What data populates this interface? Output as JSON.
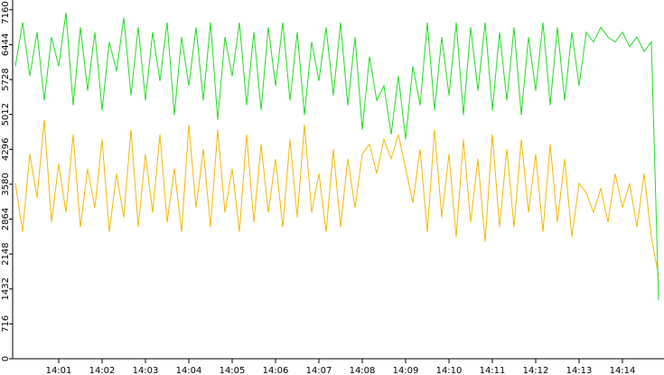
{
  "chart_data": {
    "type": "line",
    "categories": [
      null,
      null,
      null,
      null,
      null,
      null,
      "14:01",
      null,
      null,
      null,
      null,
      null,
      "14:02",
      null,
      null,
      null,
      null,
      null,
      "14:03",
      null,
      null,
      null,
      null,
      null,
      "14:04",
      null,
      null,
      null,
      null,
      null,
      "14:05",
      null,
      null,
      null,
      null,
      null,
      "14:06",
      null,
      null,
      null,
      null,
      null,
      "14:07",
      null,
      null,
      null,
      null,
      null,
      "14:08",
      null,
      null,
      null,
      null,
      null,
      "14:09",
      null,
      null,
      null,
      null,
      null,
      "14:10",
      null,
      null,
      null,
      null,
      null,
      "14:11",
      null,
      null,
      null,
      null,
      null,
      "14:12",
      null,
      null,
      null,
      null,
      null,
      "14:13",
      null,
      null,
      null,
      null,
      null,
      "14:14",
      null,
      null,
      null,
      null,
      null
    ],
    "series": [
      {
        "color": "#22dd22",
        "values": [
          6000,
          6900,
          5800,
          6700,
          5300,
          6600,
          6000,
          7100,
          5200,
          6800,
          5500,
          6700,
          5100,
          6500,
          5900,
          7000,
          5400,
          6800,
          5300,
          6700,
          5700,
          6900,
          5000,
          6600,
          5600,
          6800,
          5300,
          6900,
          4900,
          6600,
          5800,
          6900,
          5200,
          6700,
          5100,
          6800,
          5600,
          6900,
          5300,
          6700,
          5000,
          6500,
          5700,
          6800,
          5400,
          6900,
          5200,
          6600,
          4700,
          6200,
          5300,
          5600,
          4600,
          5800,
          4500,
          6000,
          5200,
          6900,
          5100,
          6600,
          5400,
          6900,
          5000,
          6800,
          5500,
          6900,
          5100,
          6700,
          5300,
          6800,
          5000,
          6600,
          5500,
          6900,
          5200,
          6800,
          5300,
          6700,
          5600,
          6700,
          6500,
          6800,
          6600,
          6500,
          6700,
          6400,
          6600,
          6300,
          6500,
          1200
        ]
      },
      {
        "color": "#f5b800",
        "values": [
          3600,
          2600,
          4200,
          3300,
          4900,
          2800,
          4000,
          3000,
          4600,
          2700,
          3900,
          3100,
          4500,
          2600,
          3800,
          2900,
          4700,
          2700,
          4200,
          3000,
          4600,
          2800,
          3900,
          2600,
          4800,
          3100,
          4300,
          2700,
          4700,
          3000,
          3900,
          2600,
          4600,
          2800,
          4400,
          3000,
          4100,
          2700,
          4500,
          2900,
          4800,
          3000,
          3800,
          2600,
          4300,
          2700,
          4100,
          3100,
          4200,
          4400,
          3800,
          4500,
          4100,
          4600,
          3900,
          3200,
          4300,
          2600,
          4700,
          2900,
          4200,
          2500,
          4500,
          2800,
          4100,
          2400,
          4600,
          2700,
          4300,
          2700,
          4500,
          3000,
          4200,
          2600,
          4400,
          2800,
          4100,
          2500,
          3600,
          3400,
          3000,
          3500,
          2800,
          3800,
          3100,
          3600,
          2700,
          3800,
          2500,
          1700
        ]
      }
    ],
    "ylim": [
      0,
      7360
    ],
    "yticks": [
      0,
      716,
      1432,
      2148,
      2864,
      3580,
      4296,
      5012,
      5728,
      6444,
      7160
    ]
  }
}
